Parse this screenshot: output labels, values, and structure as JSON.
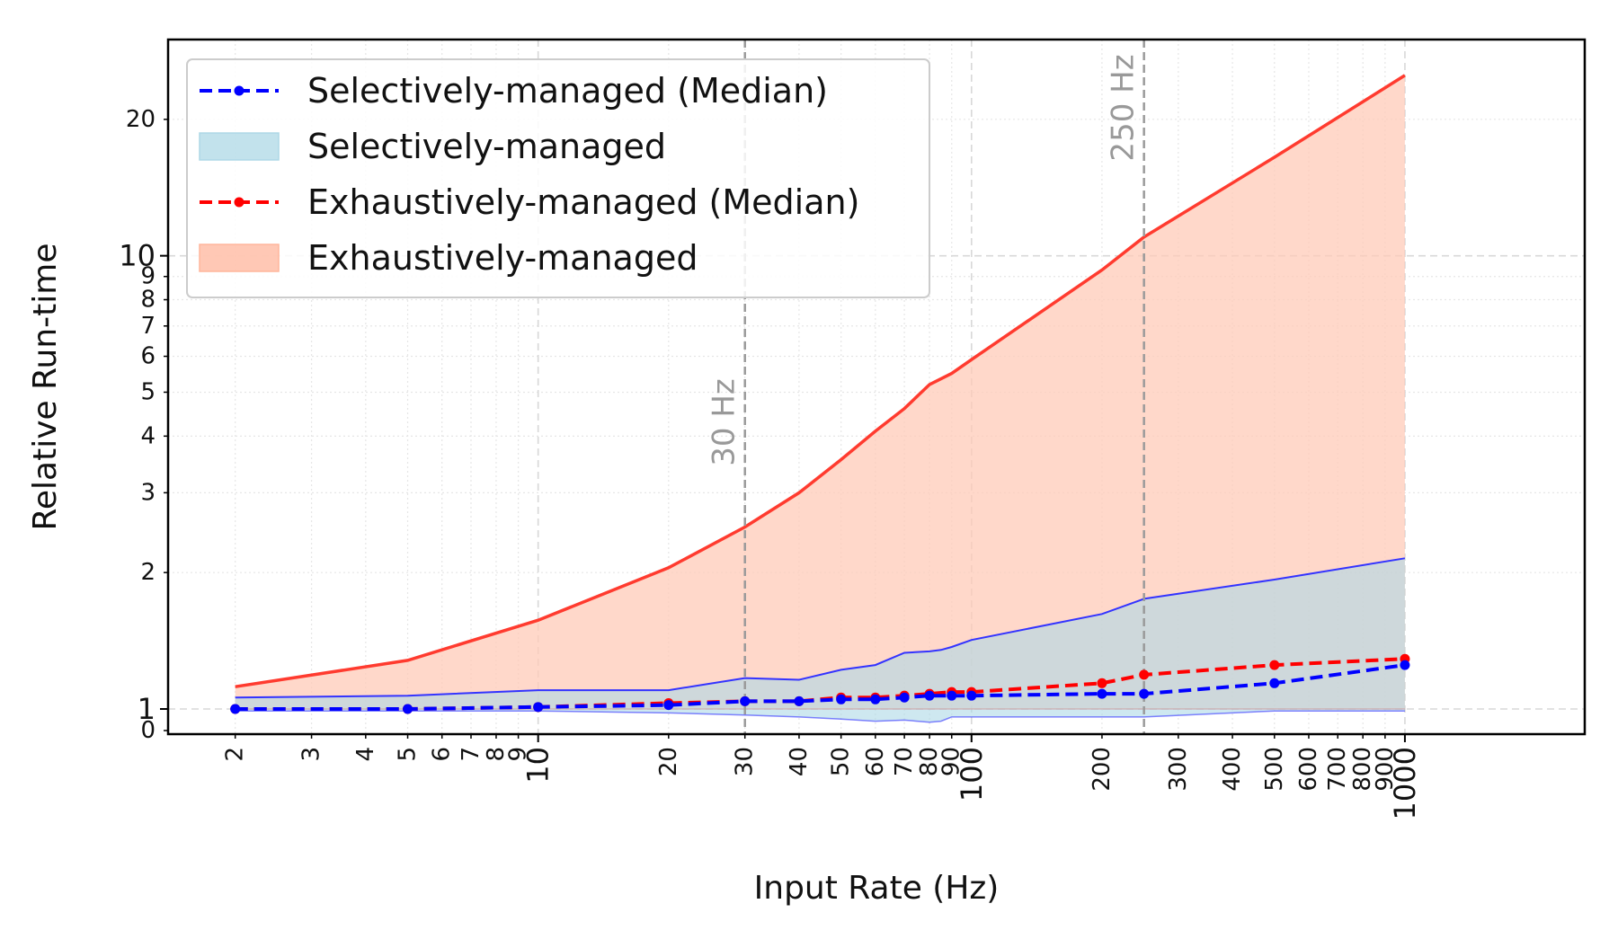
{
  "chart_data": {
    "type": "area",
    "xlabel": "Input Rate (Hz)",
    "ylabel": "Relative Run-time",
    "xscale": "log",
    "yscale": "log",
    "xlim": [
      1.4,
      2600
    ],
    "ylim": [
      0.88,
      30
    ],
    "grid": true,
    "legend_position": "top-left",
    "x_major_ticks": [
      10,
      100,
      1000
    ],
    "x_minor_ticks": [
      2,
      3,
      4,
      5,
      6,
      7,
      8,
      9,
      20,
      30,
      40,
      50,
      60,
      70,
      80,
      90,
      200,
      300,
      400,
      500,
      600,
      700,
      800,
      900
    ],
    "y_major_ticks": [
      1,
      10
    ],
    "y_minor_ticks": [
      2,
      3,
      4,
      5,
      6,
      7,
      8,
      9,
      20
    ],
    "y_extra_tick_label": "0",
    "vlines": [
      {
        "x": 30,
        "label": "30 Hz"
      },
      {
        "x": 250,
        "label": "250 Hz"
      }
    ],
    "legend": [
      {
        "label": "Selectively-managed (Median)",
        "kind": "line",
        "color": "#0000ff"
      },
      {
        "label": "Selectively-managed",
        "kind": "patch",
        "color": "#add8e6"
      },
      {
        "label": "Exhaustively-managed (Median)",
        "kind": "line",
        "color": "#ff0000"
      },
      {
        "label": "Exhaustively-managed",
        "kind": "patch",
        "color": "#ffb69c"
      }
    ],
    "series": [
      {
        "name": "Exhaustively-managed",
        "kind": "band",
        "color": "#ff3b2f",
        "fill": "#ffcbb8",
        "x": [
          2,
          5,
          10,
          20,
          30,
          40,
          50,
          60,
          70,
          80,
          90,
          100,
          200,
          250,
          500,
          1000
        ],
        "upper": [
          1.12,
          1.28,
          1.57,
          2.05,
          2.52,
          3.0,
          3.55,
          4.1,
          4.6,
          5.2,
          5.5,
          5.9,
          9.3,
          11.0,
          16.5,
          25.0
        ],
        "lower": [
          1.0,
          1.0,
          1.0,
          1.0,
          1.0,
          1.0,
          1.0,
          1.0,
          1.0,
          1.0,
          1.0,
          1.0,
          1.0,
          1.0,
          1.0,
          1.0
        ]
      },
      {
        "name": "Selectively-managed",
        "kind": "band",
        "color": "#3333ff",
        "fill": "#add8e6",
        "x": [
          2,
          5,
          10,
          20,
          30,
          40,
          50,
          60,
          70,
          80,
          85,
          90,
          100,
          200,
          250,
          500,
          1000
        ],
        "upper": [
          1.06,
          1.07,
          1.1,
          1.1,
          1.17,
          1.16,
          1.22,
          1.25,
          1.33,
          1.34,
          1.35,
          1.37,
          1.42,
          1.62,
          1.75,
          1.93,
          2.15
        ],
        "lower": [
          0.99,
          0.99,
          0.99,
          0.98,
          0.97,
          0.96,
          0.95,
          0.94,
          0.945,
          0.935,
          0.94,
          0.96,
          0.96,
          0.96,
          0.96,
          0.99,
          0.99
        ]
      },
      {
        "name": "Exhaustively-managed (Median)",
        "kind": "line",
        "color": "#ff0000",
        "x": [
          2,
          5,
          10,
          20,
          30,
          40,
          50,
          60,
          70,
          80,
          90,
          100,
          200,
          250,
          500,
          1000
        ],
        "values": [
          1.0,
          1.0,
          1.01,
          1.03,
          1.04,
          1.04,
          1.06,
          1.06,
          1.07,
          1.08,
          1.09,
          1.09,
          1.14,
          1.19,
          1.25,
          1.29
        ]
      },
      {
        "name": "Selectively-managed (Median)",
        "kind": "line",
        "color": "#0000ff",
        "x": [
          2,
          5,
          10,
          20,
          30,
          40,
          50,
          60,
          70,
          80,
          90,
          100,
          200,
          250,
          500,
          1000
        ],
        "values": [
          1.0,
          1.0,
          1.01,
          1.02,
          1.04,
          1.04,
          1.05,
          1.05,
          1.06,
          1.07,
          1.07,
          1.07,
          1.08,
          1.08,
          1.14,
          1.25
        ]
      }
    ]
  }
}
